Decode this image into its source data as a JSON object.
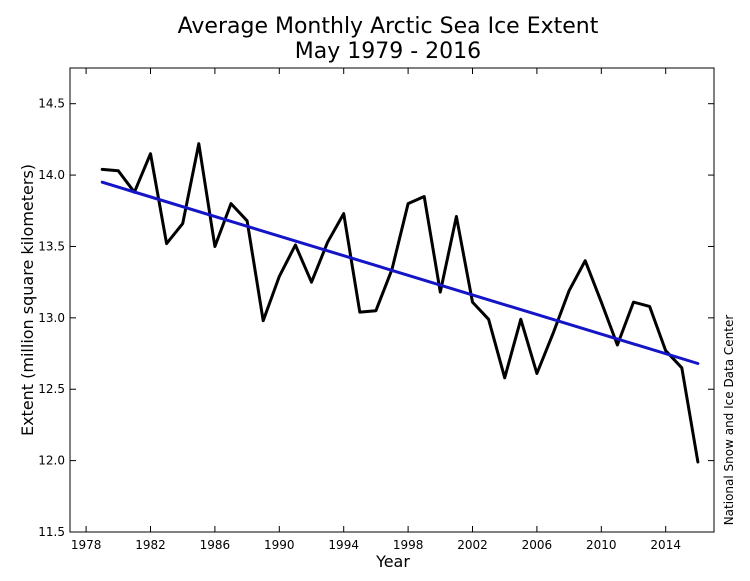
{
  "chart_data": {
    "type": "line",
    "title": "Average Monthly Arctic Sea Ice Extent",
    "subtitle": "May 1979 - 2016",
    "xlabel": "Year",
    "ylabel": "Extent (million square kilometers)",
    "credit": "National Snow and Ice Data Center",
    "xlim": [
      1977,
      2017
    ],
    "ylim": [
      11.5,
      14.75
    ],
    "xticks": [
      1978,
      1982,
      1986,
      1990,
      1994,
      1998,
      2002,
      2006,
      2010,
      2014
    ],
    "yticks": [
      11.5,
      12.0,
      12.5,
      13.0,
      13.5,
      14.0,
      14.5
    ],
    "grid": false,
    "series": [
      {
        "color": "#000000",
        "x": [
          1979,
          1980,
          1981,
          1982,
          1983,
          1984,
          1985,
          1986,
          1987,
          1988,
          1989,
          1990,
          1991,
          1992,
          1993,
          1994,
          1995,
          1996,
          1997,
          1998,
          1999,
          2000,
          2001,
          2002,
          2003,
          2004,
          2005,
          2006,
          2007,
          2008,
          2009,
          2010,
          2011,
          2012,
          2013,
          2014,
          2015,
          2016
        ],
        "y": [
          14.04,
          14.03,
          13.88,
          14.15,
          13.52,
          13.66,
          14.22,
          13.5,
          13.8,
          13.68,
          12.98,
          13.29,
          13.51,
          13.25,
          13.53,
          13.73,
          13.04,
          13.05,
          13.34,
          13.8,
          13.85,
          13.18,
          13.71,
          13.11,
          12.99,
          12.58,
          12.99,
          12.61,
          12.89,
          13.19,
          13.4,
          13.11,
          12.81,
          13.11,
          13.08,
          12.77,
          12.65,
          11.99
        ]
      },
      {
        "color": "#1515c8",
        "x": [
          1979,
          2016
        ],
        "y": [
          13.95,
          12.68
        ]
      }
    ]
  }
}
